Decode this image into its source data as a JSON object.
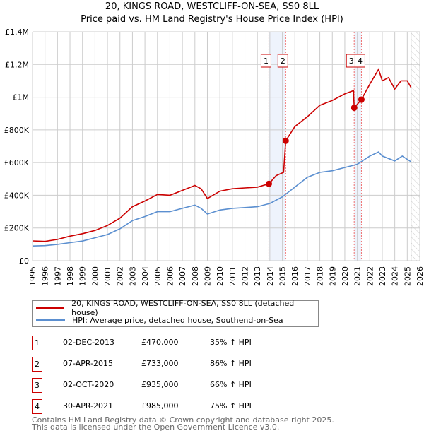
{
  "title_line1": "20, KINGS ROAD, WESTCLIFF-ON-SEA, SS0 8LL",
  "title_line2": "Price paid vs. HM Land Registry's House Price Index (HPI)",
  "chart_data": {
    "type": "line",
    "xlim": [
      1995,
      2026
    ],
    "ylim": [
      0,
      1400000
    ],
    "y_ticks": [
      {
        "v": 0,
        "label": "£0"
      },
      {
        "v": 200000,
        "label": "£200K"
      },
      {
        "v": 400000,
        "label": "£400K"
      },
      {
        "v": 600000,
        "label": "£600K"
      },
      {
        "v": 800000,
        "label": "£800K"
      },
      {
        "v": 1000000,
        "label": "£1M"
      },
      {
        "v": 1200000,
        "label": "£1.2M"
      },
      {
        "v": 1400000,
        "label": "£1.4M"
      }
    ],
    "x_ticks": [
      "1995",
      "1996",
      "1997",
      "1998",
      "1999",
      "2000",
      "2001",
      "2002",
      "2003",
      "2004",
      "2005",
      "2006",
      "2007",
      "2008",
      "2009",
      "2010",
      "2011",
      "2012",
      "2013",
      "2014",
      "2015",
      "2016",
      "2017",
      "2018",
      "2019",
      "2020",
      "2021",
      "2022",
      "2023",
      "2024",
      "2025",
      "2026"
    ],
    "grid": true,
    "series": [
      {
        "name": "20, KINGS ROAD, WESTCLIFF-ON-SEA, SS0 8LL (detached house)",
        "color": "#cc0000",
        "x": [
          1995,
          1996,
          1997,
          1998,
          1999,
          2000,
          2001,
          2002,
          2003,
          2004,
          2005,
          2006,
          2007,
          2008,
          2008.5,
          2009,
          2010,
          2011,
          2012,
          2013,
          2013.92,
          2014.5,
          2015.1,
          2015.27,
          2016,
          2017,
          2018,
          2019,
          2020,
          2020.7,
          2020.75,
          2021.33,
          2022,
          2022.7,
          2023,
          2023.5,
          2024,
          2024.5,
          2025,
          2025.3
        ],
        "y": [
          121000,
          118000,
          130000,
          150000,
          165000,
          185000,
          215000,
          260000,
          330000,
          365000,
          405000,
          400000,
          430000,
          460000,
          440000,
          380000,
          425000,
          440000,
          445000,
          450000,
          470000,
          520000,
          540000,
          733000,
          820000,
          880000,
          950000,
          980000,
          1020000,
          1040000,
          935000,
          985000,
          1080000,
          1170000,
          1100000,
          1120000,
          1050000,
          1100000,
          1100000,
          1060000
        ]
      },
      {
        "name": "HPI: Average price, detached house, Southend-on-Sea",
        "color": "#5b8fd0",
        "x": [
          1995,
          1996,
          1997,
          1998,
          1999,
          2000,
          2001,
          2002,
          2003,
          2004,
          2005,
          2006,
          2007,
          2008,
          2008.5,
          2009,
          2010,
          2011,
          2012,
          2013,
          2014,
          2015,
          2016,
          2017,
          2018,
          2019,
          2020,
          2021,
          2022,
          2022.7,
          2023,
          2024,
          2024.6,
          2025.3
        ],
        "y": [
          90000,
          92000,
          100000,
          110000,
          120000,
          140000,
          160000,
          195000,
          245000,
          270000,
          300000,
          300000,
          320000,
          340000,
          320000,
          285000,
          310000,
          320000,
          325000,
          330000,
          350000,
          390000,
          450000,
          510000,
          540000,
          550000,
          570000,
          590000,
          640000,
          665000,
          640000,
          610000,
          640000,
          605000
        ]
      }
    ],
    "sales": [
      {
        "n": "1",
        "x": 2013.92,
        "y": 470000,
        "date": "02-DEC-2013",
        "price": "£470,000",
        "hpi": "35% ↑ HPI"
      },
      {
        "n": "2",
        "x": 2015.27,
        "y": 733000,
        "date": "07-APR-2015",
        "price": "£733,000",
        "hpi": "86% ↑ HPI"
      },
      {
        "n": "3",
        "x": 2020.75,
        "y": 935000,
        "date": "02-OCT-2020",
        "price": "£935,000",
        "hpi": "66% ↑ HPI"
      },
      {
        "n": "4",
        "x": 2021.33,
        "y": 985000,
        "date": "30-APR-2021",
        "price": "£985,000",
        "hpi": "75% ↑ HPI"
      }
    ],
    "forecast_from": 2025.3
  },
  "footer_line1": "Contains HM Land Registry data © Crown copyright and database right 2025.",
  "footer_line2": "This data is licensed under the Open Government Licence v3.0."
}
